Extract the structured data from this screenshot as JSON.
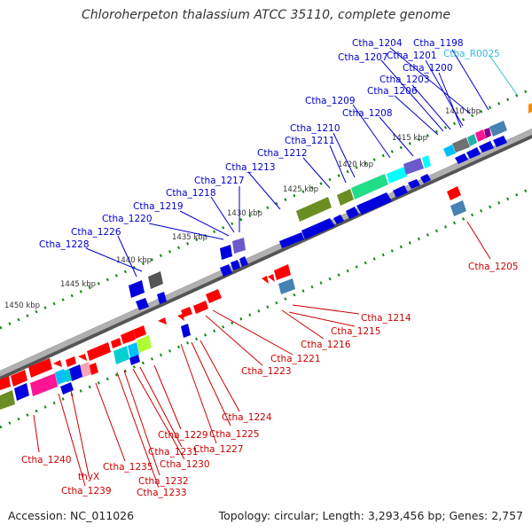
{
  "title": "Chloroherpeton thalassium ATCC 35110, complete genome",
  "footer": {
    "accession_label": "Accession:",
    "accession": "NC_011026",
    "topology_label": "Topology:",
    "topology": "circular",
    "length_label": "Length:",
    "length": "3,293,456 bp",
    "genes_label": "Genes:",
    "genes": "2,757"
  },
  "colors": {
    "forward_label": "#0000cc",
    "reverse_label": "#cc0000",
    "rna_label": "#33bbdd",
    "backbone": "#808080",
    "tick": "#117711"
  },
  "kbp_ticks": [
    "1410 kbp",
    "1415 kbp",
    "1420 kbp",
    "1425 kbp",
    "1430 kbp",
    "1435 kbp",
    "1440 kbp",
    "1445 kbp",
    "1450 kbp"
  ],
  "forward_labels": [
    "Ctha_1198",
    "Ctha_1204",
    "Ctha_1201",
    "Ctha_1207",
    "Ctha_1200",
    "Ctha_1203",
    "Ctha_1206",
    "Ctha_1209",
    "Ctha_1208",
    "Ctha_1210",
    "Ctha_1211",
    "Ctha_1212",
    "Ctha_1213",
    "Ctha_1217",
    "Ctha_1218",
    "Ctha_1219",
    "Ctha_1220",
    "Ctha_1226",
    "Ctha_1228"
  ],
  "rna_labels": [
    "Ctha_R0025"
  ],
  "reverse_labels": [
    "Ctha_1205",
    "Ctha_1214",
    "Ctha_1215",
    "Ctha_1216",
    "Ctha_1221",
    "Ctha_1223",
    "Ctha_1224",
    "Ctha_1225",
    "Ctha_1227",
    "Ctha_1229",
    "Ctha_1231",
    "Ctha_1230",
    "Ctha_1240",
    "thyX",
    "Ctha_1235",
    "Ctha_1232",
    "Ctha_1239",
    "Ctha_1233"
  ]
}
